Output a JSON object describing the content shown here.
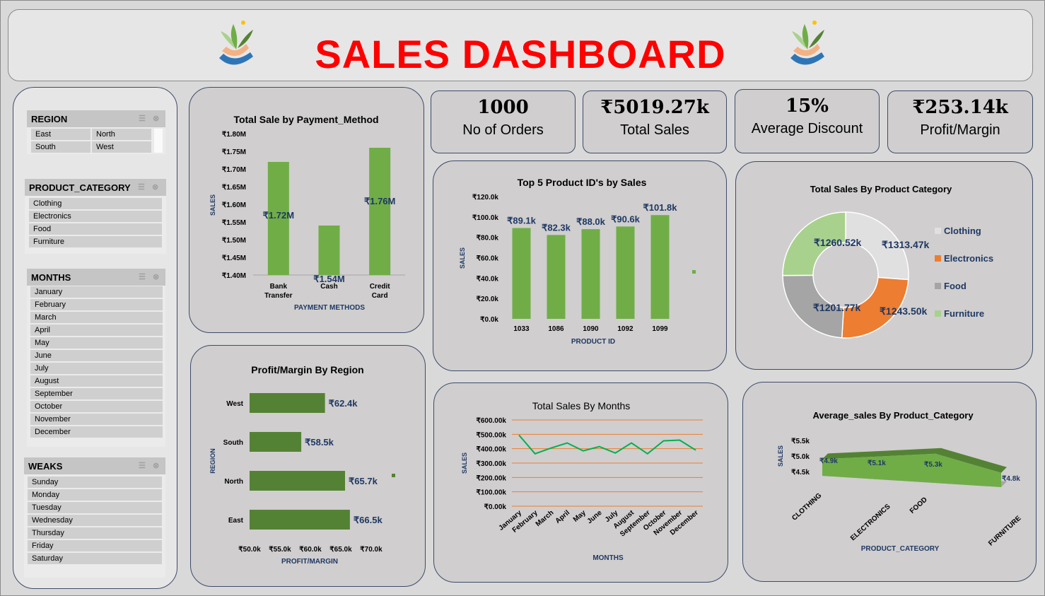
{
  "header": {
    "title": "SALES DASHBOARD"
  },
  "kpis": [
    {
      "value": "1000",
      "label": "No of Orders"
    },
    {
      "value": "₹5019.27k",
      "label": "Total Sales"
    },
    {
      "value": "15%",
      "label": "Average Discount"
    },
    {
      "value": "₹253.14k",
      "label": "Profit/Margin"
    }
  ],
  "slicers": {
    "region": {
      "title": "REGION",
      "items": [
        "East",
        "North",
        "South",
        "West"
      ]
    },
    "category": {
      "title": "PRODUCT_CATEGORY",
      "items": [
        "Clothing",
        "Electronics",
        "Food",
        "Furniture"
      ]
    },
    "months": {
      "title": "MONTHS",
      "items": [
        "January",
        "February",
        "March",
        "April",
        "May",
        "June",
        "July",
        "August",
        "September",
        "October",
        "November",
        "December"
      ]
    },
    "weeks": {
      "title": "WEAKS",
      "items": [
        "Sunday",
        "Monday",
        "Tuesday",
        "Wednesday",
        "Thursday",
        "Friday",
        "Saturday"
      ]
    }
  },
  "colors": {
    "green": "#70ad47",
    "darkgreen": "#548235",
    "orange": "#ed7d31",
    "grey": "#a5a5a5",
    "lightgrey": "#e0e0e0",
    "lightgreen": "#a9d18e",
    "title_red": "#ff0000",
    "label_navy": "#1f3864"
  },
  "chart_data": [
    {
      "type": "bar",
      "title": "Total Sale by Payment_Method",
      "xlabel": "PAYMENT METHODS",
      "ylabel": "SALES",
      "categories": [
        "Bank Transfer",
        "Cash",
        "Credit Card"
      ],
      "values": [
        1.72,
        1.54,
        1.76
      ],
      "data_labels": [
        "₹1.72M",
        "₹1.54M",
        "₹1.76M"
      ],
      "ylim": [
        1.4,
        1.8
      ],
      "yticks": [
        "₹1.40M",
        "₹1.45M",
        "₹1.50M",
        "₹1.55M",
        "₹1.60M",
        "₹1.65M",
        "₹1.70M",
        "₹1.75M",
        "₹1.80M"
      ]
    },
    {
      "type": "bar",
      "title": "Top 5 Product ID's by Sales",
      "xlabel": "PRODUCT ID",
      "ylabel": "SALES",
      "categories": [
        "1033",
        "1086",
        "1090",
        "1092",
        "1099"
      ],
      "values": [
        89.1,
        82.3,
        88.0,
        90.6,
        101.8
      ],
      "data_labels": [
        "₹89.1k",
        "₹82.3k",
        "₹88.0k",
        "₹90.6k",
        "₹101.8k"
      ],
      "ylim": [
        0,
        120
      ],
      "yticks": [
        "₹0.0k",
        "₹20.0k",
        "₹40.0k",
        "₹60.0k",
        "₹80.0k",
        "₹100.0k",
        "₹120.0k"
      ]
    },
    {
      "type": "pie",
      "title": "Total Sales By Product Category",
      "categories": [
        "Clothing",
        "Electronics",
        "Food",
        "Furniture"
      ],
      "values": [
        1313.47,
        1243.5,
        1201.77,
        1260.52
      ],
      "data_labels": [
        "₹1313.47k",
        "₹1243.50k",
        "₹1201.77k",
        "₹1260.52k"
      ],
      "legend": "right"
    },
    {
      "type": "bar",
      "orientation": "horizontal",
      "title": "Profit/Margin By Region",
      "xlabel": "PROFIT/MARGIN",
      "ylabel": "REGION",
      "categories": [
        "West",
        "South",
        "North",
        "East"
      ],
      "values": [
        62.4,
        58.5,
        65.7,
        66.5
      ],
      "data_labels": [
        "₹62.4k",
        "₹58.5k",
        "₹65.7k",
        "₹66.5k"
      ],
      "xlim": [
        50,
        70
      ],
      "xticks": [
        "₹50.0k",
        "₹55.0k",
        "₹60.0k",
        "₹65.0k",
        "₹70.0k"
      ]
    },
    {
      "type": "line",
      "title": "Total Sales By Months",
      "xlabel": "MONTHS",
      "ylabel": "SALES",
      "categories": [
        "January",
        "February",
        "March",
        "April",
        "May",
        "June",
        "July",
        "August",
        "September",
        "October",
        "November",
        "December"
      ],
      "values": [
        495,
        365,
        405,
        440,
        385,
        415,
        370,
        440,
        365,
        455,
        460,
        390
      ],
      "ylim": [
        0,
        600
      ],
      "yticks": [
        "₹0.00k",
        "₹100.00k",
        "₹200.00k",
        "₹300.00k",
        "₹400.00k",
        "₹500.00k",
        "₹600.00k"
      ]
    },
    {
      "type": "area",
      "title": "Average_sales By Product_Category",
      "xlabel": "PRODUCT_CATEGORY",
      "ylabel": "SALES",
      "categories": [
        "CLOTHING",
        "ELECTRONICS",
        "FOOD",
        "FURNITURE"
      ],
      "values": [
        4.9,
        5.1,
        5.3,
        4.8
      ],
      "data_labels": [
        "₹4.9k",
        "₹5.1k",
        "₹5.3k",
        "₹4.8k"
      ],
      "ylim": [
        4.5,
        5.5
      ],
      "yticks": [
        "₹4.5k",
        "₹5.0k",
        "₹5.5k"
      ]
    }
  ]
}
